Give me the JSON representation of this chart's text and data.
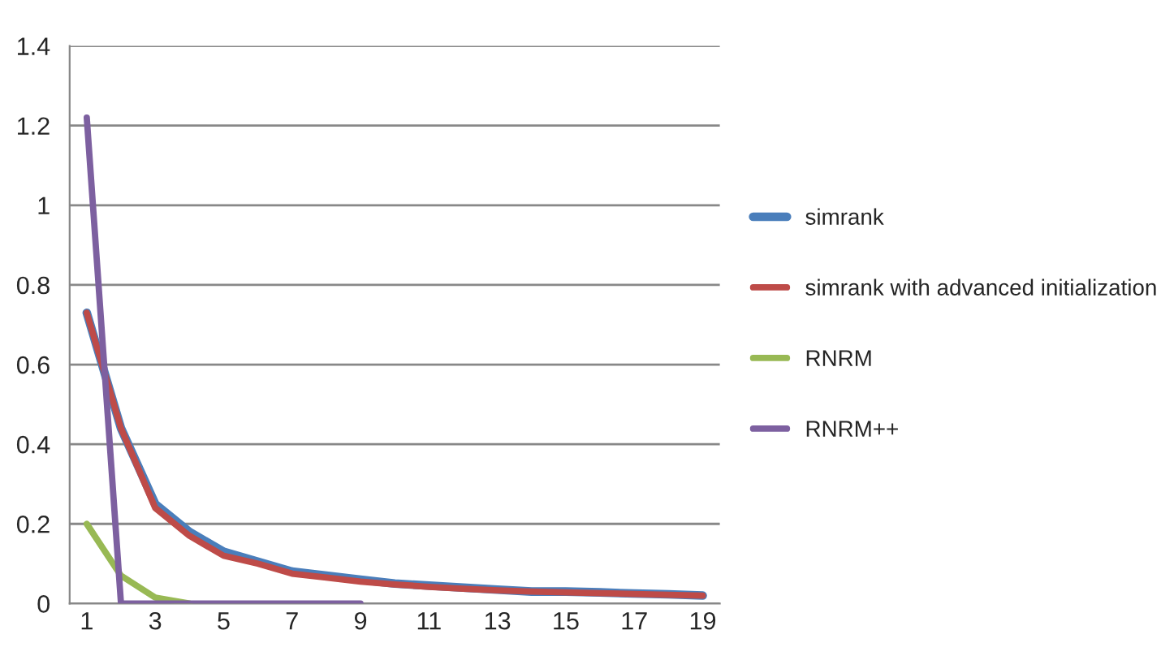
{
  "chart_data": {
    "type": "line",
    "categories": [
      "1",
      null,
      "3",
      null,
      "5",
      null,
      "7",
      null,
      "9",
      null,
      "11",
      null,
      "13",
      null,
      "15",
      null,
      "17",
      null,
      "19"
    ],
    "series": [
      {
        "name": "simrank",
        "color": "#4a7ebb",
        "values": [
          0.73,
          0.44,
          0.25,
          0.18,
          0.13,
          0.105,
          0.08,
          0.07,
          0.06,
          0.05,
          0.045,
          0.04,
          0.035,
          0.03,
          0.03,
          0.028,
          0.025,
          0.023,
          0.02
        ]
      },
      {
        "name": "simrank with advanced initialization",
        "color": "#be4b48",
        "values": [
          0.73,
          0.44,
          0.24,
          0.17,
          0.12,
          0.1,
          0.075,
          0.065,
          0.055,
          0.048,
          0.042,
          0.037,
          0.033,
          0.03,
          0.028,
          0.026,
          0.024,
          0.022,
          0.02
        ]
      },
      {
        "name": "RNRM",
        "color": "#98b954",
        "values": [
          0.2,
          0.07,
          0.015,
          0,
          null,
          null,
          null,
          null,
          null,
          null,
          null,
          null,
          null,
          null,
          null,
          null,
          null,
          null,
          null
        ]
      },
      {
        "name": "RNRM++",
        "color": "#7d60a0",
        "values": [
          1.22,
          0,
          0,
          0,
          0,
          0,
          0,
          0,
          0,
          null,
          null,
          null,
          null,
          null,
          null,
          null,
          null,
          null,
          null
        ]
      }
    ],
    "ylim": [
      0,
      1.4
    ],
    "yticks": [
      0,
      0.2,
      0.4,
      0.6,
      0.8,
      1,
      1.2,
      1.4
    ],
    "grid": "y",
    "legend": "right",
    "marker": "none",
    "line_style": "solid"
  }
}
